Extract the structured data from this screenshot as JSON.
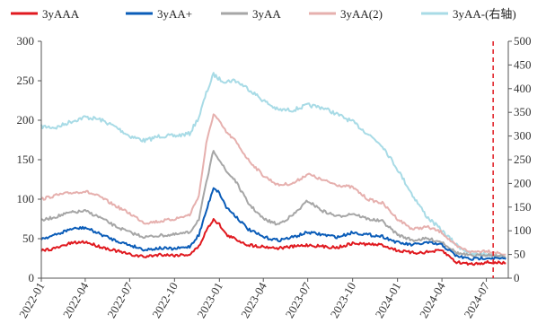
{
  "chart_data": {
    "type": "line",
    "title": "",
    "xlabel": "",
    "ylabel": "",
    "ylim_left": [
      0,
      300
    ],
    "ylim_right": [
      0,
      500
    ],
    "y_ticks_left": [
      "0",
      "50",
      "100",
      "150",
      "200",
      "250",
      "300"
    ],
    "y_ticks_right": [
      "0",
      "50",
      "100",
      "150",
      "200",
      "250",
      "300",
      "350",
      "400",
      "450",
      "500"
    ],
    "x_ticks": [
      "2022-01",
      "2022-04",
      "2022-07",
      "2022-10",
      "2023-01",
      "2023-04",
      "2023-07",
      "2023-10",
      "2024-01",
      "2024-04",
      "2024-07"
    ],
    "grid": false,
    "legend_position": "top",
    "marker_line": {
      "date": "2024-07-15",
      "style": "dashed",
      "color": "#e0191f"
    },
    "series": [
      {
        "name": "3yAAA",
        "axis": "left",
        "color": "#e0191f",
        "points": [
          [
            "2022-01-01",
            35
          ],
          [
            "2022-02-01",
            38
          ],
          [
            "2022-03-01",
            44
          ],
          [
            "2022-04-01",
            46
          ],
          [
            "2022-05-01",
            40
          ],
          [
            "2022-06-01",
            35
          ],
          [
            "2022-07-01",
            30
          ],
          [
            "2022-08-01",
            27
          ],
          [
            "2022-09-01",
            30
          ],
          [
            "2022-10-01",
            29
          ],
          [
            "2022-11-01",
            30
          ],
          [
            "2022-11-20",
            40
          ],
          [
            "2022-12-05",
            60
          ],
          [
            "2022-12-20",
            75
          ],
          [
            "2023-01-01",
            68
          ],
          [
            "2023-01-15",
            55
          ],
          [
            "2023-02-01",
            50
          ],
          [
            "2023-03-01",
            42
          ],
          [
            "2023-04-01",
            40
          ],
          [
            "2023-05-01",
            38
          ],
          [
            "2023-06-01",
            40
          ],
          [
            "2023-07-01",
            42
          ],
          [
            "2023-08-01",
            40
          ],
          [
            "2023-09-01",
            39
          ],
          [
            "2023-10-01",
            44
          ],
          [
            "2023-11-01",
            43
          ],
          [
            "2023-12-01",
            42
          ],
          [
            "2024-01-01",
            35
          ],
          [
            "2024-02-01",
            32
          ],
          [
            "2024-03-01",
            33
          ],
          [
            "2024-04-01",
            35
          ],
          [
            "2024-05-01",
            20
          ],
          [
            "2024-06-01",
            18
          ],
          [
            "2024-07-01",
            20
          ],
          [
            "2024-08-10",
            19
          ]
        ]
      },
      {
        "name": "3yAA+",
        "axis": "left",
        "color": "#0a5cb8",
        "points": [
          [
            "2022-01-01",
            50
          ],
          [
            "2022-02-01",
            55
          ],
          [
            "2022-03-01",
            62
          ],
          [
            "2022-04-01",
            64
          ],
          [
            "2022-05-01",
            56
          ],
          [
            "2022-06-01",
            48
          ],
          [
            "2022-07-01",
            42
          ],
          [
            "2022-08-01",
            36
          ],
          [
            "2022-09-01",
            38
          ],
          [
            "2022-10-01",
            37
          ],
          [
            "2022-11-01",
            40
          ],
          [
            "2022-11-20",
            55
          ],
          [
            "2022-12-05",
            85
          ],
          [
            "2022-12-20",
            115
          ],
          [
            "2023-01-01",
            108
          ],
          [
            "2023-01-15",
            90
          ],
          [
            "2023-02-01",
            80
          ],
          [
            "2023-03-01",
            62
          ],
          [
            "2023-04-01",
            52
          ],
          [
            "2023-05-01",
            48
          ],
          [
            "2023-06-01",
            52
          ],
          [
            "2023-07-01",
            58
          ],
          [
            "2023-08-01",
            55
          ],
          [
            "2023-09-01",
            52
          ],
          [
            "2023-10-01",
            58
          ],
          [
            "2023-11-01",
            55
          ],
          [
            "2023-12-01",
            53
          ],
          [
            "2024-01-01",
            45
          ],
          [
            "2024-02-01",
            42
          ],
          [
            "2024-03-01",
            45
          ],
          [
            "2024-04-01",
            42
          ],
          [
            "2024-05-01",
            28
          ],
          [
            "2024-06-01",
            24
          ],
          [
            "2024-07-01",
            26
          ],
          [
            "2024-08-10",
            24
          ]
        ]
      },
      {
        "name": "3yAA",
        "axis": "left",
        "color": "#a6a6a6",
        "points": [
          [
            "2022-01-01",
            73
          ],
          [
            "2022-02-01",
            78
          ],
          [
            "2022-03-01",
            83
          ],
          [
            "2022-04-01",
            85
          ],
          [
            "2022-05-01",
            77
          ],
          [
            "2022-06-01",
            66
          ],
          [
            "2022-07-01",
            58
          ],
          [
            "2022-08-01",
            52
          ],
          [
            "2022-09-01",
            54
          ],
          [
            "2022-10-01",
            55
          ],
          [
            "2022-11-01",
            58
          ],
          [
            "2022-11-20",
            75
          ],
          [
            "2022-12-05",
            120
          ],
          [
            "2022-12-20",
            162
          ],
          [
            "2023-01-01",
            150
          ],
          [
            "2023-01-15",
            135
          ],
          [
            "2023-02-01",
            125
          ],
          [
            "2023-03-01",
            95
          ],
          [
            "2023-04-01",
            75
          ],
          [
            "2023-05-01",
            68
          ],
          [
            "2023-06-01",
            80
          ],
          [
            "2023-07-01",
            98
          ],
          [
            "2023-08-01",
            85
          ],
          [
            "2023-09-01",
            78
          ],
          [
            "2023-10-01",
            82
          ],
          [
            "2023-11-01",
            75
          ],
          [
            "2023-12-01",
            72
          ],
          [
            "2024-01-01",
            55
          ],
          [
            "2024-02-01",
            48
          ],
          [
            "2024-03-01",
            50
          ],
          [
            "2024-04-01",
            46
          ],
          [
            "2024-05-01",
            32
          ],
          [
            "2024-06-01",
            28
          ],
          [
            "2024-07-01",
            30
          ],
          [
            "2024-08-10",
            27
          ]
        ]
      },
      {
        "name": "3yAA(2)",
        "axis": "left",
        "color": "#e6b0ae",
        "points": [
          [
            "2022-01-01",
            100
          ],
          [
            "2022-02-01",
            105
          ],
          [
            "2022-03-01",
            108
          ],
          [
            "2022-04-01",
            110
          ],
          [
            "2022-05-01",
            103
          ],
          [
            "2022-06-01",
            92
          ],
          [
            "2022-07-01",
            82
          ],
          [
            "2022-08-01",
            70
          ],
          [
            "2022-09-01",
            72
          ],
          [
            "2022-10-01",
            75
          ],
          [
            "2022-11-01",
            80
          ],
          [
            "2022-11-20",
            105
          ],
          [
            "2022-12-05",
            170
          ],
          [
            "2022-12-20",
            208
          ],
          [
            "2023-01-01",
            198
          ],
          [
            "2023-01-15",
            185
          ],
          [
            "2023-02-01",
            175
          ],
          [
            "2023-03-01",
            150
          ],
          [
            "2023-04-01",
            130
          ],
          [
            "2023-05-01",
            118
          ],
          [
            "2023-06-01",
            120
          ],
          [
            "2023-07-01",
            132
          ],
          [
            "2023-08-01",
            124
          ],
          [
            "2023-09-01",
            118
          ],
          [
            "2023-10-01",
            115
          ],
          [
            "2023-11-01",
            100
          ],
          [
            "2023-12-01",
            95
          ],
          [
            "2024-01-01",
            75
          ],
          [
            "2024-02-01",
            62
          ],
          [
            "2024-03-01",
            65
          ],
          [
            "2024-04-01",
            58
          ],
          [
            "2024-05-01",
            40
          ],
          [
            "2024-06-01",
            33
          ],
          [
            "2024-07-01",
            35
          ],
          [
            "2024-08-10",
            30
          ]
        ]
      },
      {
        "name": "3yAA-(右轴)",
        "axis": "right",
        "color": "#a8dbe6",
        "points": [
          [
            "2022-01-01",
            320
          ],
          [
            "2022-02-01",
            318
          ],
          [
            "2022-03-01",
            330
          ],
          [
            "2022-04-01",
            340
          ],
          [
            "2022-05-01",
            335
          ],
          [
            "2022-06-01",
            320
          ],
          [
            "2022-07-01",
            300
          ],
          [
            "2022-08-01",
            290
          ],
          [
            "2022-09-01",
            300
          ],
          [
            "2022-10-01",
            300
          ],
          [
            "2022-11-01",
            305
          ],
          [
            "2022-11-20",
            340
          ],
          [
            "2022-12-05",
            390
          ],
          [
            "2022-12-20",
            430
          ],
          [
            "2023-01-01",
            420
          ],
          [
            "2023-01-15",
            415
          ],
          [
            "2023-02-01",
            418
          ],
          [
            "2023-03-01",
            400
          ],
          [
            "2023-04-01",
            375
          ],
          [
            "2023-05-01",
            355
          ],
          [
            "2023-06-01",
            355
          ],
          [
            "2023-07-01",
            365
          ],
          [
            "2023-08-01",
            360
          ],
          [
            "2023-09-01",
            345
          ],
          [
            "2023-10-01",
            330
          ],
          [
            "2023-11-01",
            305
          ],
          [
            "2023-12-01",
            280
          ],
          [
            "2024-01-01",
            230
          ],
          [
            "2024-02-01",
            175
          ],
          [
            "2024-03-01",
            130
          ],
          [
            "2024-04-01",
            100
          ],
          [
            "2024-05-01",
            70
          ],
          [
            "2024-06-01",
            50
          ],
          [
            "2024-07-01",
            50
          ],
          [
            "2024-08-10",
            45
          ]
        ]
      }
    ]
  }
}
